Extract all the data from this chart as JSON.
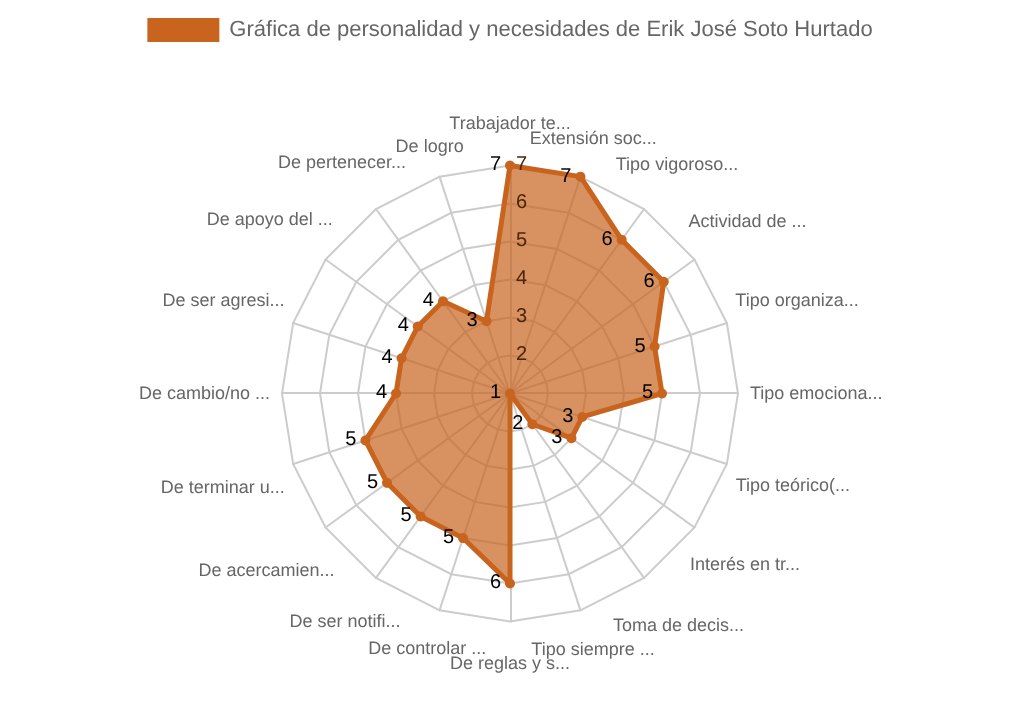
{
  "chart_data": {
    "type": "radar",
    "categories": [
      "Trabajador te...",
      "Extensión soc...",
      "Tipo vigoroso...",
      "Actividad de ...",
      "Tipo organiza...",
      "Tipo emociona...",
      "Tipo teórico(...",
      "Interés en tr...",
      "Toma de decis...",
      "Tipo siempre ...",
      "De reglas y s...",
      "De controlar ...",
      "De ser notifi...",
      "De acercamien...",
      "De terminar u...",
      "De cambio/no ...",
      "De ser agresi...",
      "De apoyo del ...",
      "De pertenecer...",
      "De logro"
    ],
    "series": [
      {
        "name": "Gráfica de personalidad y necesidades de Erik José Soto Hurtado",
        "color": "#c8641e",
        "values": [
          7,
          7,
          6,
          6,
          5,
          5,
          3,
          3,
          2,
          1,
          6,
          5,
          5,
          5,
          5,
          4,
          4,
          4,
          4,
          3
        ]
      }
    ],
    "ylim": [
      1,
      7
    ],
    "yticks": [
      2,
      3,
      4,
      5,
      6,
      7
    ],
    "data_labels": true,
    "legend": "top",
    "grid": true
  }
}
